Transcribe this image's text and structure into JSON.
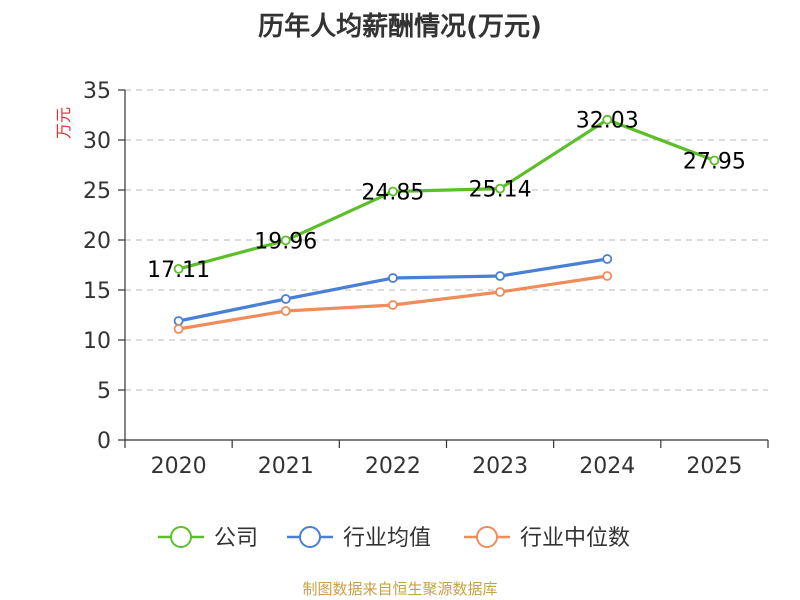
{
  "chart_data": {
    "type": "line",
    "title": "历年人均薪酬情况(万元)",
    "ylabel": "万元",
    "xlabel": "",
    "categories": [
      "2020",
      "2021",
      "2022",
      "2023",
      "2024",
      "2025"
    ],
    "ylim": [
      0,
      35
    ],
    "yticks": [
      0,
      5,
      10,
      15,
      20,
      25,
      30,
      35
    ],
    "series": [
      {
        "name": "公司",
        "color": "#5cbf2a",
        "values": [
          17.11,
          19.96,
          24.85,
          25.14,
          32.03,
          27.95
        ],
        "labels": [
          "17.11",
          "19.96",
          "24.85",
          "25.14",
          "32.03",
          "27.95"
        ]
      },
      {
        "name": "行业均值",
        "color": "#4a7fd8",
        "values": [
          11.9,
          14.1,
          16.2,
          16.4,
          18.1,
          null
        ]
      },
      {
        "name": "行业中位数",
        "color": "#f08c5a",
        "values": [
          11.1,
          12.9,
          13.5,
          14.8,
          16.4,
          null
        ]
      }
    ],
    "grid": true,
    "legend_position": "bottom"
  },
  "footer": {
    "source": "制图数据来自恒生聚源数据库"
  }
}
